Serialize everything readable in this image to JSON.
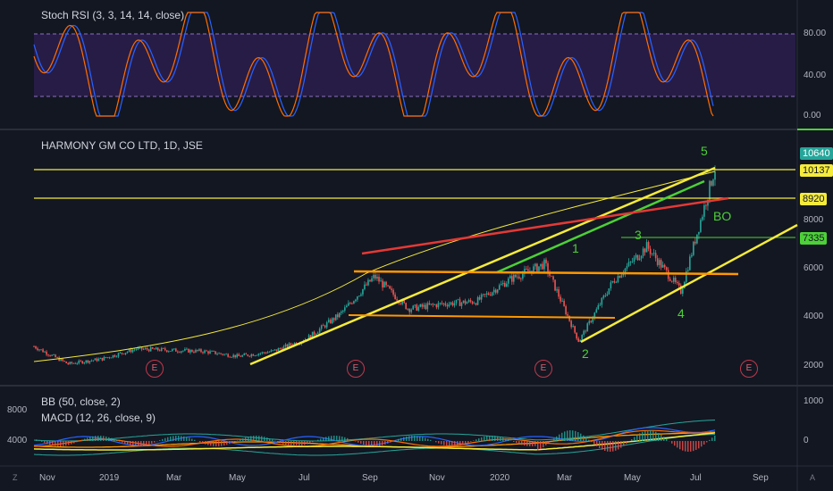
{
  "rsi_panel": {
    "title": "Stoch RSI (3, 3, 14, 14, close)",
    "levels": [
      "80.00",
      "40.00",
      "0.00"
    ]
  },
  "price_panel": {
    "title": "HARMONY GM CO LTD, 1D, JSE",
    "price_ticks": [
      "8000",
      "6000",
      "4000",
      "2000"
    ],
    "price_tags": [
      {
        "value": "10640",
        "color": "#26a69a"
      },
      {
        "value": "10137",
        "color": "#f5eb3b"
      },
      {
        "value": "8920",
        "color": "#f5eb3b"
      },
      {
        "value": "7335",
        "color": "#4cd137"
      }
    ],
    "wave_labels": [
      "5",
      "1",
      "3",
      "BO",
      "4",
      "2"
    ],
    "earnings_markers": [
      "E",
      "E",
      "E",
      "E"
    ]
  },
  "indicator_panel": {
    "bb_label": "BB (50, close, 2)",
    "macd_label": "MACD (12, 26, close, 9)",
    "left_ticks": [
      "8000",
      "4000"
    ],
    "right_ticks": [
      "1000",
      "0"
    ]
  },
  "time_axis": {
    "labels": [
      "Nov",
      "2019",
      "Mar",
      "May",
      "Jul",
      "Sep",
      "Nov",
      "2020",
      "Mar",
      "May",
      "Jul",
      "Sep"
    ]
  },
  "corner_buttons": {
    "left": "Z",
    "right": "A"
  },
  "colors": {
    "background": "#131722",
    "rsi_band": "#2a1d4a",
    "yellow": "#f5eb3b",
    "red": "#e53935",
    "green": "#4cd137",
    "orange": "#ff9800",
    "candle_up": "#26a69a",
    "candle_down": "#ef5350"
  },
  "chart_data": {
    "type": "candlestick",
    "title": "HARMONY GM CO LTD, 1D, JSE",
    "ylim": [
      1500,
      11500
    ],
    "approx_close_path": [
      [
        "2018-11",
        3000
      ],
      [
        "2018-12",
        2300
      ],
      [
        "2019-01",
        2500
      ],
      [
        "2019-02",
        2900
      ],
      [
        "2019-03",
        2850
      ],
      [
        "2019-04",
        2800
      ],
      [
        "2019-05",
        2600
      ],
      [
        "2019-06",
        2800
      ],
      [
        "2019-07",
        3300
      ],
      [
        "2019-08",
        4300
      ],
      [
        "2019-09",
        5800
      ],
      [
        "2019-10",
        4500
      ],
      [
        "2019-11",
        4700
      ],
      [
        "2019-12",
        4800
      ],
      [
        "2020-01",
        5700
      ],
      [
        "2020-02",
        6300
      ],
      [
        "2020-03",
        3200
      ],
      [
        "2020-04",
        5600
      ],
      [
        "2020-05",
        7000
      ],
      [
        "2020-06",
        5200
      ],
      [
        "2020-07",
        10137
      ]
    ],
    "horizontal_levels": [
      10137,
      8920,
      7335
    ],
    "wave_labels": [
      "1",
      "2",
      "3",
      "4",
      "5",
      "BO"
    ]
  }
}
